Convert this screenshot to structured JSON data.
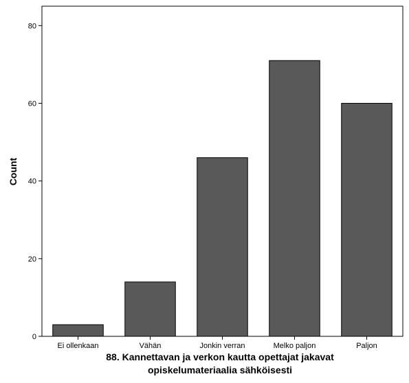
{
  "chart_data": {
    "type": "bar",
    "categories": [
      "Ei ollenkaan",
      "Vähän",
      "Jonkin verran",
      "Melko paljon",
      "Paljon"
    ],
    "values": [
      3,
      14,
      46,
      71,
      60
    ],
    "xlabel_lines": [
      "88. Kannettavan ja verkon kautta opettajat jakavat",
      "opiskelumateriaalia sähköisesti"
    ],
    "ylabel": "Count",
    "ylim": [
      0,
      85
    ],
    "yticks": [
      0,
      20,
      40,
      60,
      80
    ],
    "grid": false,
    "bar_color": "#595959",
    "bar_edge_color": "#000000"
  }
}
